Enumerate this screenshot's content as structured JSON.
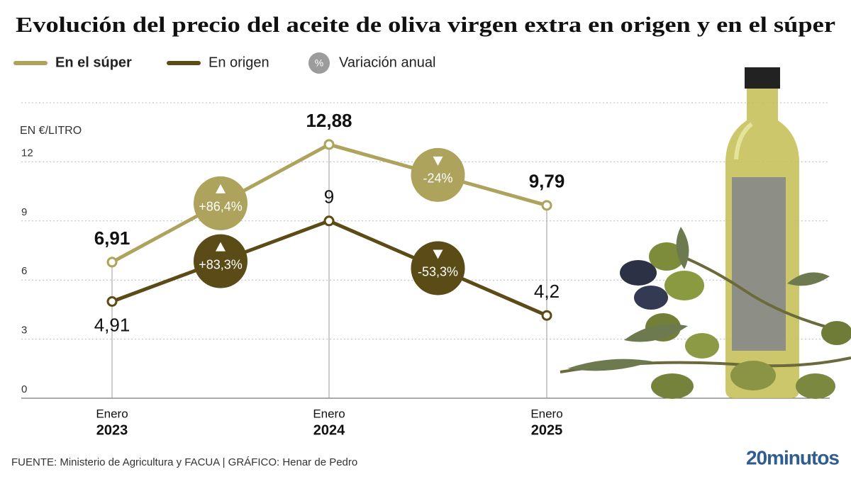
{
  "chart_data": {
    "type": "line",
    "title": "Evolución del precio del aceite de oliva virgen extra en origen y en el súper",
    "y_label": "EN €/LITRO",
    "categories": [
      {
        "month": "Enero",
        "year": "2023"
      },
      {
        "month": "Enero",
        "year": "2024"
      },
      {
        "month": "Enero",
        "year": "2025"
      }
    ],
    "series": [
      {
        "name": "En el súper",
        "color": "#aea35c",
        "values": [
          6.91,
          12.88,
          9.79
        ],
        "value_labels": [
          "6,91",
          "12,88",
          "9,79"
        ],
        "changes": [
          86.4,
          -24
        ],
        "change_labels": [
          "+86,4%",
          "-24%"
        ]
      },
      {
        "name": "En origen",
        "color": "#5b4b16",
        "values": [
          4.91,
          9,
          4.2
        ],
        "value_labels": [
          "4,91",
          "9",
          "4,2"
        ],
        "changes": [
          83.3,
          -53.3
        ],
        "change_labels": [
          "+83,3%",
          "-53,3%"
        ]
      }
    ],
    "change_legend": {
      "symbol": "%",
      "label": "Variación anual",
      "color": "#9c9c9c"
    },
    "ylim": [
      0,
      15
    ],
    "yticks": [
      0,
      3,
      6,
      9,
      12
    ],
    "grid": true,
    "source": "FUENTE: Ministerio de Agricultura y FACUA  |  GRÁFICO: Henar de Pedro",
    "brand": "20minutos"
  }
}
